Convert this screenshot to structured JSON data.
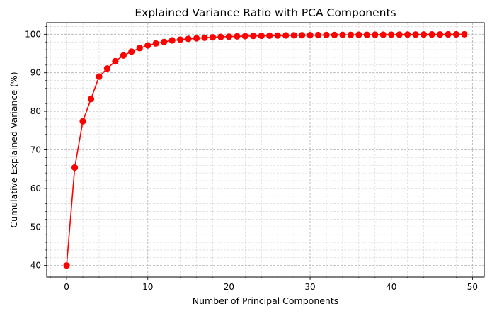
{
  "chart_data": {
    "type": "line",
    "title": "Explained Variance Ratio with PCA Components",
    "xlabel": "Number of Principal Components",
    "ylabel": "Cumulative Explained Variance (%)",
    "xlim": [
      -2.45,
      51.45
    ],
    "ylim": [
      37,
      103
    ],
    "xticks": [
      0,
      10,
      20,
      30,
      40,
      50
    ],
    "yticks": [
      40,
      50,
      60,
      70,
      80,
      90,
      100
    ],
    "grid": true,
    "grid_which": "major and minor",
    "series": [
      {
        "color": "#ff0000",
        "marker": "circle",
        "x": [
          0,
          1,
          2,
          3,
          4,
          5,
          6,
          7,
          8,
          9,
          10,
          11,
          12,
          13,
          14,
          15,
          16,
          17,
          18,
          19,
          20,
          21,
          22,
          23,
          24,
          25,
          26,
          27,
          28,
          29,
          30,
          31,
          32,
          33,
          34,
          35,
          36,
          37,
          38,
          39,
          40,
          41,
          42,
          43,
          44,
          45,
          46,
          47,
          48,
          49
        ],
        "y": [
          40.0,
          65.4,
          77.4,
          83.2,
          89.0,
          91.1,
          93.0,
          94.5,
          95.5,
          96.4,
          97.1,
          97.6,
          98.0,
          98.4,
          98.6,
          98.8,
          98.95,
          99.1,
          99.2,
          99.3,
          99.38,
          99.45,
          99.5,
          99.55,
          99.6,
          99.63,
          99.66,
          99.69,
          99.72,
          99.74,
          99.76,
          99.78,
          99.8,
          99.81,
          99.83,
          99.84,
          99.85,
          99.86,
          99.87,
          99.88,
          99.89,
          99.9,
          99.91,
          99.92,
          99.93,
          99.94,
          99.95,
          99.96,
          99.97,
          99.98
        ]
      }
    ]
  }
}
